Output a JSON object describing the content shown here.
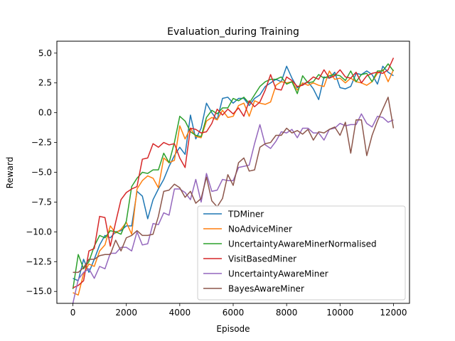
{
  "chart_data": {
    "type": "line",
    "title": "Evaluation_during Training",
    "xlabel": "Episode",
    "ylabel": "Reward",
    "xlim": [
      -600,
      12600
    ],
    "ylim": [
      -16,
      6
    ],
    "xticks": [
      0,
      2000,
      4000,
      6000,
      8000,
      10000,
      12000
    ],
    "xtick_labels": [
      "0",
      "2000",
      "4000",
      "6000",
      "8000",
      "10000",
      "12000"
    ],
    "yticks": [
      5.0,
      2.5,
      0.0,
      -2.5,
      -5.0,
      -7.5,
      -10.0,
      -12.5,
      -15.0
    ],
    "ytick_labels": [
      "5.0",
      "2.5",
      "0.0",
      "−2.5",
      "−5.0",
      "−7.5",
      "−10.0",
      "−12.5",
      "−15.0"
    ],
    "grid": false,
    "legend_position": "lower-right",
    "x": [
      0,
      200,
      400,
      600,
      800,
      1000,
      1200,
      1400,
      1600,
      1800,
      2000,
      2200,
      2400,
      2600,
      2800,
      3000,
      3200,
      3400,
      3600,
      3800,
      4000,
      4200,
      4400,
      4600,
      4800,
      5000,
      5200,
      5400,
      5600,
      5800,
      6000,
      6200,
      6400,
      6600,
      6800,
      7000,
      7200,
      7400,
      7600,
      7800,
      8000,
      8200,
      8400,
      8600,
      8800,
      9000,
      9200,
      9400,
      9600,
      9800,
      10000,
      10200,
      10400,
      10600,
      10800,
      11000,
      11200,
      11400,
      11600,
      11800,
      12000
    ],
    "series": [
      {
        "name": "TDMiner",
        "color": "#1f77b4",
        "values": [
          -13.9,
          -14.1,
          -12.3,
          -13.4,
          -12.3,
          -11.1,
          -10.3,
          -10.5,
          -10.0,
          -9.9,
          -9.5,
          -9.5,
          -6.6,
          -7.0,
          -8.9,
          -7.3,
          -6.4,
          -5.6,
          -4.5,
          -3.6,
          -2.9,
          -3.5,
          -0.2,
          -2.2,
          -1.3,
          0.8,
          0.0,
          -0.6,
          1.2,
          1.3,
          0.8,
          1.2,
          1.2,
          0.6,
          1.2,
          1.5,
          2.2,
          2.5,
          2.8,
          2.6,
          3.9,
          2.9,
          2.1,
          2.4,
          2.6,
          2.0,
          1.1,
          3.0,
          2.9,
          3.4,
          2.1,
          2.0,
          2.2,
          3.3,
          3.2,
          3.5,
          3.2,
          2.4,
          3.9,
          3.4,
          3.1
        ]
      },
      {
        "name": "NoAdviceMiner",
        "color": "#ff7f0e",
        "values": [
          -15.1,
          -15.3,
          -13.5,
          -12.7,
          -12.9,
          -11.6,
          -11.1,
          -9.5,
          -10.1,
          -9.8,
          -9.2,
          -10.2,
          -6.4,
          -5.7,
          -5.3,
          -5.5,
          -6.3,
          -3.8,
          -4.2,
          -4.0,
          -1.1,
          -2.2,
          -1.3,
          -2.0,
          -2.1,
          -0.7,
          -0.4,
          -0.6,
          0.2,
          -0.4,
          -0.3,
          0.6,
          0.8,
          -0.3,
          1.0,
          0.8,
          0.7,
          0.9,
          2.3,
          2.6,
          2.5,
          2.6,
          1.9,
          2.5,
          2.3,
          2.5,
          2.3,
          2.2,
          3.5,
          2.8,
          2.9,
          2.5,
          2.9,
          2.6,
          2.5,
          2.3,
          2.6,
          3.3,
          3.6,
          2.6,
          3.6
        ]
      },
      {
        "name": "UncertaintyAwareMinerNormalised",
        "color": "#2ca02c",
        "values": [
          -14.8,
          -11.9,
          -13.1,
          -12.5,
          -11.2,
          -10.3,
          -10.5,
          -9.9,
          -10.0,
          -10.2,
          -9.1,
          -6.2,
          -5.5,
          -5.0,
          -5.1,
          -4.8,
          -4.8,
          -3.4,
          -4.2,
          -2.5,
          -0.3,
          -0.7,
          -1.6,
          -1.9,
          -2.0,
          -0.4,
          0.2,
          -0.1,
          0.4,
          0.4,
          1.2,
          1.0,
          1.3,
          0.8,
          1.5,
          2.2,
          2.6,
          2.8,
          2.8,
          3.0,
          2.4,
          2.6,
          1.6,
          3.1,
          2.5,
          2.6,
          3.2,
          2.9,
          3.1,
          3.2,
          3.1,
          2.7,
          3.5,
          2.6,
          3.2,
          3.3,
          2.6,
          3.5,
          3.5,
          4.1,
          3.5
        ]
      },
      {
        "name": "VisitBasedMiner",
        "color": "#d62728",
        "values": [
          -14.7,
          -14.5,
          -14.1,
          -11.6,
          -11.4,
          -8.7,
          -8.8,
          -11.2,
          -9.2,
          -7.3,
          -6.7,
          -6.4,
          -6.2,
          -3.9,
          -3.8,
          -2.6,
          -2.9,
          -2.5,
          -2.7,
          -2.6,
          -3.8,
          -4.6,
          -1.3,
          -1.4,
          -1.7,
          -1.6,
          -0.9,
          0.3,
          -0.2,
          0.3,
          -0.1,
          0.4,
          -0.3,
          1.0,
          0.5,
          0.9,
          1.9,
          3.2,
          2.0,
          1.9,
          3.0,
          2.7,
          2.2,
          2.3,
          2.6,
          3.0,
          2.8,
          3.6,
          2.9,
          3.1,
          3.6,
          3.0,
          2.9,
          3.4,
          2.5,
          3.1,
          3.3,
          3.4,
          3.3,
          3.6,
          4.6
        ]
      },
      {
        "name": "UncertaintyAwareMiner",
        "color": "#9467bd",
        "values": [
          -16.0,
          -14.0,
          -13.4,
          -13.1,
          -13.9,
          -12.9,
          -13.1,
          -11.8,
          -11.8,
          -11.3,
          -11.3,
          -11.6,
          -10.0,
          -11.1,
          -11.0,
          -9.3,
          -9.4,
          -8.4,
          -8.6,
          -6.4,
          -6.4,
          -6.7,
          -7.3,
          -5.6,
          -7.5,
          -5.1,
          -6.6,
          -6.5,
          -5.6,
          -5.7,
          -5.7,
          -4.6,
          -4.5,
          -4.4,
          -2.6,
          -1.0,
          -2.7,
          -3.0,
          -2.4,
          -1.6,
          -1.7,
          -1.4,
          -2.1,
          -1.3,
          -1.3,
          -1.7,
          -1.7,
          -2.3,
          -1.4,
          -1.3,
          -0.9,
          -1.1,
          -1.0,
          -1.0,
          -0.1,
          -0.9,
          -1.2,
          -0.3,
          -0.4,
          -0.8,
          -0.6
        ]
      },
      {
        "name": "BayesAwareMiner",
        "color": "#8c564b",
        "values": [
          -13.4,
          -13.4,
          -13.0,
          -12.3,
          -12.3,
          -12.0,
          -11.9,
          -11.9,
          -10.7,
          -11.6,
          -10.5,
          -10.3,
          -9.9,
          -10.3,
          -10.3,
          -10.2,
          -8.7,
          -6.6,
          -6.5,
          -6.0,
          -6.3,
          -7.1,
          -6.6,
          -7.6,
          -7.2,
          -5.4,
          -7.4,
          -7.9,
          -7.2,
          -5.2,
          -6.1,
          -4.2,
          -3.8,
          -4.9,
          -4.8,
          -2.9,
          -2.6,
          -2.5,
          -1.9,
          -1.9,
          -1.3,
          -1.7,
          -1.5,
          -1.8,
          -1.4,
          -2.3,
          -1.6,
          -1.7,
          -1.4,
          -1.2,
          -1.9,
          -0.8,
          -3.4,
          -0.6,
          -0.6,
          -3.6,
          -1.9,
          -0.7,
          0.3,
          1.3,
          -1.3
        ]
      }
    ]
  }
}
